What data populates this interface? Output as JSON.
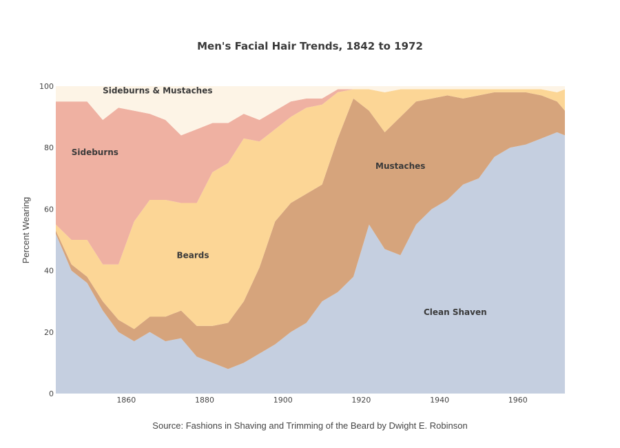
{
  "chart_data": {
    "type": "area",
    "title": "Men's Facial Hair Trends, 1842 to 1972",
    "ylabel": "Percent Wearing",
    "xlabel": "",
    "source": "Source: Fashions in Shaving and Trimming of the Beard by Dwight E. Robinson",
    "xlim": [
      1842,
      1972
    ],
    "ylim": [
      0,
      100
    ],
    "xticks": [
      1860,
      1880,
      1900,
      1920,
      1940,
      1960
    ],
    "yticks": [
      0,
      20,
      40,
      60,
      80,
      100
    ],
    "grid": false,
    "legend": "none (series labeled inside areas)",
    "stacked": true,
    "x": [
      1842,
      1846,
      1850,
      1854,
      1858,
      1862,
      1866,
      1870,
      1874,
      1878,
      1882,
      1886,
      1890,
      1894,
      1898,
      1902,
      1906,
      1910,
      1914,
      1918,
      1922,
      1926,
      1930,
      1934,
      1938,
      1942,
      1946,
      1950,
      1954,
      1958,
      1962,
      1966,
      1970,
      1972
    ],
    "series": [
      {
        "name": "Clean Shaven",
        "color": "#c5cfe0",
        "values": [
          52,
          40,
          36,
          27,
          20,
          17,
          20,
          17,
          18,
          12,
          10,
          8,
          10,
          13,
          16,
          20,
          23,
          30,
          33,
          38,
          55,
          47,
          45,
          55,
          60,
          63,
          68,
          70,
          77,
          80,
          81,
          83,
          85,
          84
        ]
      },
      {
        "name": "Mustaches",
        "color": "#d6a47c",
        "values": [
          1,
          2,
          2,
          3,
          4,
          4,
          5,
          8,
          9,
          10,
          12,
          15,
          20,
          28,
          40,
          42,
          42,
          38,
          50,
          58,
          37,
          38,
          45,
          40,
          36,
          34,
          28,
          27,
          21,
          18,
          17,
          14,
          10,
          8
        ]
      },
      {
        "name": "Beards",
        "color": "#fcd696",
        "values": [
          2,
          8,
          12,
          12,
          18,
          35,
          38,
          38,
          35,
          40,
          50,
          52,
          53,
          41,
          30,
          28,
          28,
          26,
          15,
          3,
          7,
          13,
          9,
          4,
          3,
          2,
          3,
          2,
          1,
          1,
          1,
          2,
          3,
          7
        ]
      },
      {
        "name": "Sideburns",
        "color": "#efb1a2",
        "values": [
          40,
          45,
          45,
          47,
          51,
          36,
          28,
          26,
          22,
          24,
          16,
          13,
          8,
          7,
          6,
          5,
          3,
          2,
          1,
          0,
          0,
          0,
          0,
          0,
          0,
          0,
          0,
          0,
          0,
          0,
          0,
          0,
          0,
          0
        ]
      },
      {
        "name": "Sideburns & Mustaches",
        "color": "#fdf4e6",
        "values": [
          5,
          5,
          5,
          11,
          7,
          8,
          9,
          11,
          16,
          14,
          12,
          12,
          9,
          11,
          8,
          5,
          4,
          4,
          1,
          1,
          1,
          2,
          1,
          1,
          1,
          1,
          1,
          1,
          1,
          1,
          1,
          1,
          2,
          1
        ]
      }
    ],
    "area_labels": [
      {
        "text": "Sideburns & Mustaches",
        "x": 1868,
        "y": 98.5
      },
      {
        "text": "Sideburns",
        "x": 1852,
        "y": 78.5
      },
      {
        "text": "Beards",
        "x": 1877,
        "y": 45
      },
      {
        "text": "Mustaches",
        "x": 1930,
        "y": 74
      },
      {
        "text": "Clean Shaven",
        "x": 1944,
        "y": 26.5
      }
    ]
  }
}
